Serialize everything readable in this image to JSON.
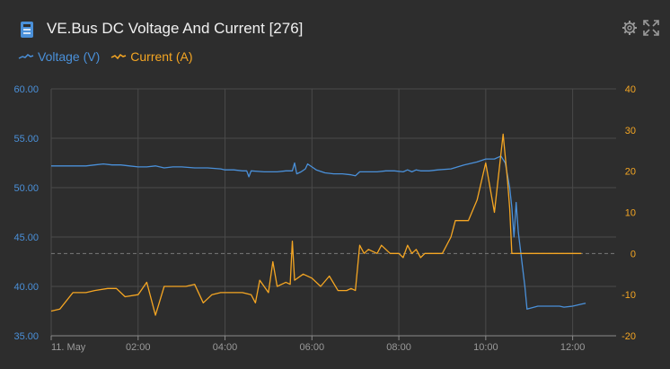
{
  "header": {
    "title": "VE.Bus DC Voltage And Current [276]",
    "icon": "ve-bus-device-icon",
    "tools": [
      "settings-gear-icon",
      "expand-fullscreen-icon"
    ]
  },
  "colors": {
    "background": "#2d2d2d",
    "grid": "#4a4a4a",
    "voltage": "#4a90d9",
    "current": "#f5a623",
    "left_axis_text": "#4a90d9",
    "right_axis_text": "#f5a623",
    "x_axis_text": "#9a9a9a"
  },
  "chart_data": {
    "type": "line",
    "title": "VE.Bus DC Voltage And Current [276]",
    "xlabel": "",
    "x_ticks": [
      "11. May",
      "02:00",
      "04:00",
      "06:00",
      "08:00",
      "10:00",
      "12:00"
    ],
    "x_tick_hours": [
      0,
      2,
      4,
      6,
      8,
      10,
      12
    ],
    "xlim_hours": [
      0,
      13.0
    ],
    "y_left": {
      "label": "",
      "lim": [
        35,
        60
      ],
      "ticks": [
        "35.00",
        "40.00",
        "45.00",
        "50.00",
        "55.00",
        "60.00"
      ]
    },
    "y_right": {
      "label": "",
      "lim": [
        -20,
        40
      ],
      "ticks": [
        "-20",
        "-10",
        "0",
        "10",
        "20",
        "30",
        "40"
      ]
    },
    "zero_line_right": 0,
    "grid": true,
    "legend_position": "top-left",
    "series": [
      {
        "name": "Voltage (V)",
        "axis": "left",
        "color": "#4a90d9",
        "points": [
          [
            0.0,
            52.2
          ],
          [
            0.4,
            52.2
          ],
          [
            0.8,
            52.2
          ],
          [
            1.0,
            52.3
          ],
          [
            1.2,
            52.4
          ],
          [
            1.4,
            52.3
          ],
          [
            1.6,
            52.3
          ],
          [
            1.8,
            52.2
          ],
          [
            2.0,
            52.1
          ],
          [
            2.2,
            52.1
          ],
          [
            2.4,
            52.2
          ],
          [
            2.6,
            52.0
          ],
          [
            2.8,
            52.1
          ],
          [
            3.0,
            52.1
          ],
          [
            3.3,
            52.0
          ],
          [
            3.6,
            52.0
          ],
          [
            3.9,
            51.9
          ],
          [
            4.0,
            51.8
          ],
          [
            4.2,
            51.8
          ],
          [
            4.4,
            51.7
          ],
          [
            4.5,
            51.7
          ],
          [
            4.55,
            51.1
          ],
          [
            4.6,
            51.7
          ],
          [
            4.9,
            51.6
          ],
          [
            5.2,
            51.6
          ],
          [
            5.4,
            51.7
          ],
          [
            5.55,
            51.7
          ],
          [
            5.6,
            52.5
          ],
          [
            5.65,
            51.4
          ],
          [
            5.75,
            51.6
          ],
          [
            5.85,
            51.9
          ],
          [
            5.9,
            52.4
          ],
          [
            6.0,
            52.1
          ],
          [
            6.1,
            51.8
          ],
          [
            6.3,
            51.5
          ],
          [
            6.5,
            51.4
          ],
          [
            6.7,
            51.4
          ],
          [
            6.9,
            51.3
          ],
          [
            7.0,
            51.2
          ],
          [
            7.1,
            51.6
          ],
          [
            7.3,
            51.6
          ],
          [
            7.5,
            51.6
          ],
          [
            7.7,
            51.7
          ],
          [
            7.9,
            51.7
          ],
          [
            8.1,
            51.6
          ],
          [
            8.2,
            51.8
          ],
          [
            8.3,
            51.6
          ],
          [
            8.4,
            51.8
          ],
          [
            8.5,
            51.7
          ],
          [
            8.7,
            51.7
          ],
          [
            8.9,
            51.8
          ],
          [
            9.2,
            51.9
          ],
          [
            9.5,
            52.3
          ],
          [
            9.8,
            52.6
          ],
          [
            10.0,
            52.9
          ],
          [
            10.2,
            52.9
          ],
          [
            10.35,
            53.2
          ],
          [
            10.45,
            52.5
          ],
          [
            10.55,
            50.0
          ],
          [
            10.6,
            48.0
          ],
          [
            10.65,
            45.0
          ],
          [
            10.7,
            48.5
          ],
          [
            10.75,
            45.5
          ],
          [
            10.9,
            40.0
          ],
          [
            10.95,
            37.7
          ],
          [
            11.2,
            38.0
          ],
          [
            11.5,
            38.0
          ],
          [
            11.7,
            38.0
          ],
          [
            11.8,
            37.9
          ],
          [
            12.0,
            38.0
          ],
          [
            12.2,
            38.2
          ],
          [
            12.3,
            38.3
          ]
        ]
      },
      {
        "name": "Current (A)",
        "axis": "right",
        "color": "#f5a623",
        "points": [
          [
            0.0,
            -14
          ],
          [
            0.2,
            -13.5
          ],
          [
            0.5,
            -9.5
          ],
          [
            0.8,
            -9.5
          ],
          [
            1.0,
            -9
          ],
          [
            1.3,
            -8.5
          ],
          [
            1.5,
            -8.5
          ],
          [
            1.7,
            -10.5
          ],
          [
            2.0,
            -10
          ],
          [
            2.2,
            -7
          ],
          [
            2.4,
            -15
          ],
          [
            2.6,
            -8
          ],
          [
            2.9,
            -8
          ],
          [
            3.1,
            -8
          ],
          [
            3.3,
            -7.5
          ],
          [
            3.5,
            -12
          ],
          [
            3.7,
            -10
          ],
          [
            3.9,
            -9.5
          ],
          [
            4.2,
            -9.5
          ],
          [
            4.4,
            -9.5
          ],
          [
            4.6,
            -10
          ],
          [
            4.7,
            -12
          ],
          [
            4.8,
            -6.5
          ],
          [
            5.0,
            -9.5
          ],
          [
            5.1,
            -2
          ],
          [
            5.2,
            -8
          ],
          [
            5.4,
            -7
          ],
          [
            5.5,
            -7.5
          ],
          [
            5.55,
            3
          ],
          [
            5.6,
            -6.5
          ],
          [
            5.8,
            -5
          ],
          [
            6.0,
            -6
          ],
          [
            6.2,
            -8
          ],
          [
            6.4,
            -5.5
          ],
          [
            6.6,
            -9
          ],
          [
            6.8,
            -9
          ],
          [
            6.9,
            -8.5
          ],
          [
            7.0,
            -9
          ],
          [
            7.1,
            2
          ],
          [
            7.2,
            0
          ],
          [
            7.3,
            1
          ],
          [
            7.5,
            0
          ],
          [
            7.6,
            2
          ],
          [
            7.7,
            1
          ],
          [
            7.8,
            0
          ],
          [
            8.0,
            0
          ],
          [
            8.1,
            -1
          ],
          [
            8.2,
            2
          ],
          [
            8.3,
            0
          ],
          [
            8.4,
            1
          ],
          [
            8.5,
            -1
          ],
          [
            8.6,
            0
          ],
          [
            8.7,
            0
          ],
          [
            8.8,
            0
          ],
          [
            8.9,
            0
          ],
          [
            9.0,
            0
          ],
          [
            9.2,
            4
          ],
          [
            9.3,
            8
          ],
          [
            9.6,
            8
          ],
          [
            9.8,
            13
          ],
          [
            10.0,
            22
          ],
          [
            10.2,
            10
          ],
          [
            10.4,
            29
          ],
          [
            10.5,
            18
          ],
          [
            10.55,
            11
          ],
          [
            10.6,
            0
          ],
          [
            10.8,
            0
          ],
          [
            11.0,
            0
          ],
          [
            11.2,
            0
          ],
          [
            11.5,
            0
          ],
          [
            11.8,
            0
          ],
          [
            12.0,
            0
          ],
          [
            12.2,
            0
          ]
        ]
      }
    ]
  }
}
